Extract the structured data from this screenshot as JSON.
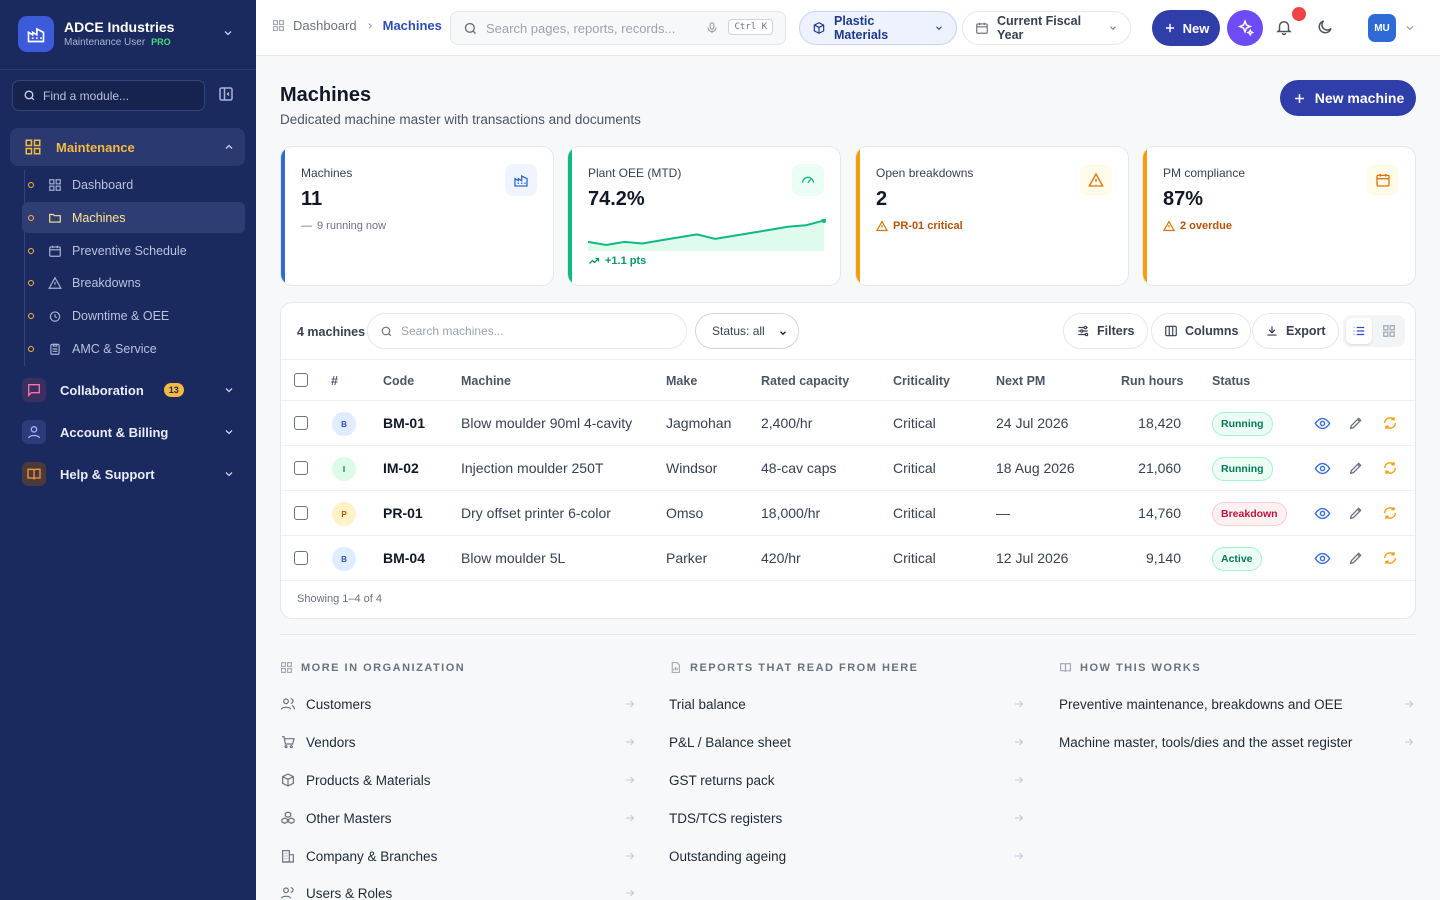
{
  "org": {
    "name": "ADCE Industries",
    "role": "Maintenance User",
    "plan": "PRO"
  },
  "sidebar": {
    "find_placeholder": "Find a module...",
    "active_group": {
      "label": "Maintenance"
    },
    "sub_items": [
      {
        "label": "Dashboard",
        "icon": "grid-icon"
      },
      {
        "label": "Machines",
        "icon": "folder-icon",
        "active": true
      },
      {
        "label": "Preventive Schedule",
        "icon": "calendar-icon"
      },
      {
        "label": "Breakdowns",
        "icon": "alert-triangle-icon"
      },
      {
        "label": "Downtime & OEE",
        "icon": "timer-icon"
      },
      {
        "label": "AMC & Service",
        "icon": "clipboard-icon"
      }
    ],
    "groups": [
      {
        "label": "Collaboration",
        "badge": "13",
        "icon": "chat-icon"
      },
      {
        "label": "Account & Billing",
        "icon": "user-icon"
      },
      {
        "label": "Help & Support",
        "icon": "book-icon"
      }
    ]
  },
  "topbar": {
    "breadcrumb": [
      "Dashboard",
      "Machines"
    ],
    "search_placeholder": "Search pages, reports, records...",
    "shortcut": "Ctrl K",
    "material": "Plastic Materials",
    "period": "Current Fiscal Year",
    "new_label": "New",
    "avatar": "MU"
  },
  "page": {
    "title": "Machines",
    "subtitle": "Dedicated machine master with transactions and documents",
    "new_button": "New machine"
  },
  "kpis": [
    {
      "label": "Machines",
      "value": "11",
      "note": "9 running now",
      "accent": "#2f6bd6"
    },
    {
      "label": "Plant OEE (MTD)",
      "value": "74.2%",
      "note": "+1.1 pts",
      "accent": "#10b981",
      "trend": [
        60,
        58,
        60,
        59,
        61,
        63,
        65,
        62,
        64,
        66,
        68,
        70,
        71,
        74.2
      ]
    },
    {
      "label": "Open breakdowns",
      "value": "2",
      "note": "PR-01 critical",
      "accent": "#f59e0b"
    },
    {
      "label": "PM compliance",
      "value": "87%",
      "note": "2 overdue",
      "accent": "#f59e0b"
    }
  ],
  "table": {
    "count": "4 machines",
    "search_placeholder": "Search machines...",
    "status_filter": "Status: all",
    "filters": "Filters",
    "columns_btn": "Columns",
    "export": "Export",
    "headers": [
      "#",
      "Code",
      "Machine",
      "Make",
      "Rated capacity",
      "Criticality",
      "Next PM",
      "Run hours",
      "Status"
    ],
    "rows": [
      {
        "letter": "B",
        "code": "BM-01",
        "machine": "Blow moulder 90ml 4-cavity",
        "make": "Jagmohan",
        "capacity": "2,400/hr",
        "criticality": "Critical",
        "next_pm": "24 Jul 2026",
        "run_hours": "18,420",
        "status": "Running"
      },
      {
        "letter": "I",
        "code": "IM-02",
        "machine": "Injection moulder 250T",
        "make": "Windsor",
        "capacity": "48-cav caps",
        "criticality": "Critical",
        "next_pm": "18 Aug 2026",
        "run_hours": "21,060",
        "status": "Running"
      },
      {
        "letter": "P",
        "code": "PR-01",
        "machine": "Dry offset printer 6-color",
        "make": "Omso",
        "capacity": "18,000/hr",
        "criticality": "Critical",
        "next_pm": "—",
        "run_hours": "14,760",
        "status": "Breakdown"
      },
      {
        "letter": "B",
        "code": "BM-04",
        "machine": "Blow moulder 5L",
        "make": "Parker",
        "capacity": "420/hr",
        "criticality": "Critical",
        "next_pm": "12 Jul 2026",
        "run_hours": "9,140",
        "status": "Active"
      }
    ],
    "footer": "Showing 1–4 of 4"
  },
  "sections": {
    "org": {
      "title": "MORE IN ORGANIZATION",
      "links": [
        "Customers",
        "Vendors",
        "Products & Materials",
        "Other Masters",
        "Company & Branches",
        "Users & Roles"
      ]
    },
    "reports": {
      "title": "REPORTS THAT READ FROM HERE",
      "links": [
        "Trial balance",
        "P&L / Balance sheet",
        "GST returns pack",
        "TDS/TCS registers",
        "Outstanding ageing"
      ]
    },
    "how": {
      "title": "HOW THIS WORKS",
      "links": [
        "Preventive maintenance, breakdowns and OEE",
        "Machine master, tools/dies and the asset register"
      ]
    }
  }
}
